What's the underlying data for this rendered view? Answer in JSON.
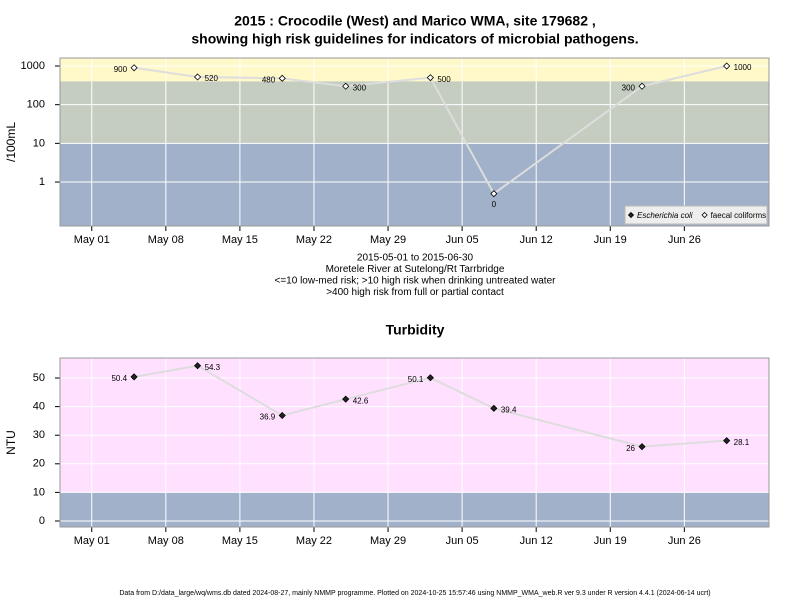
{
  "title": [
    "2015 : Crocodile (West) and Marico WMA, site 179682 ,",
    "showing high risk guidelines for indicators of microbial pathogens."
  ],
  "footer": "Data from D:/data_large/wq/wms.db dated 2024-08-27, mainly NMMP programme. Plotted on 2024-10-25 15:57:46 using NMMP_WMA_web.R ver 9.3 under R version 4.4.1 (2024-06-14 ucrt)",
  "chart_data": [
    {
      "type": "line",
      "ylabel": "/100mL",
      "log_scale": true,
      "grid": true,
      "legend": "bottom-right",
      "caption": [
        "2015-05-01 to 2015-06-30",
        "Moretele River at Sutelong/Rt Tarrbridge",
        "<=10 low-med risk; >10 high risk when drinking untreated water",
        ">400 high risk from full or partial contact"
      ],
      "x": [
        "2015-05-05",
        "2015-05-11",
        "2015-05-19",
        "2015-05-25",
        "2015-06-02",
        "2015-06-08",
        "2015-06-22",
        "2015-06-30"
      ],
      "xlim": [
        "2015-04-28",
        "2015-07-04"
      ],
      "xticks": [
        {
          "value": "2015-05-01",
          "label": "May 01"
        },
        {
          "value": "2015-05-08",
          "label": "May 08"
        },
        {
          "value": "2015-05-15",
          "label": "May 15"
        },
        {
          "value": "2015-05-22",
          "label": "May 22"
        },
        {
          "value": "2015-05-29",
          "label": "May 29"
        },
        {
          "value": "2015-06-05",
          "label": "Jun 05"
        },
        {
          "value": "2015-06-12",
          "label": "Jun 12"
        },
        {
          "value": "2015-06-19",
          "label": "Jun 19"
        },
        {
          "value": "2015-06-26",
          "label": "Jun 26"
        }
      ],
      "ylim": [
        0.073,
        1610
      ],
      "yticks": [
        1,
        10,
        100,
        1000
      ],
      "bands": [
        {
          "from": 400,
          "color": "#fff8c8"
        },
        {
          "from": 10,
          "color": "#c4cdc0"
        },
        {
          "color": "#a0b1c9"
        }
      ],
      "series": [
        {
          "name": "Escherichia coli",
          "color": "#000000",
          "marker": "filled",
          "values": [
            null,
            null,
            null,
            null,
            null,
            null,
            null,
            null
          ]
        },
        {
          "name": "faecal coliforms",
          "color": "#dddddd",
          "marker": "open",
          "values": [
            900,
            520,
            480,
            300,
            500,
            0.5,
            300,
            1000
          ],
          "value_labels": [
            "900",
            "520",
            "480",
            "300",
            "500",
            "0",
            "300",
            "1000"
          ]
        }
      ]
    },
    {
      "type": "line",
      "title": "Turbidity",
      "ylabel": "NTU",
      "grid": true,
      "x": [
        "2015-05-05",
        "2015-05-11",
        "2015-05-19",
        "2015-05-25",
        "2015-06-02",
        "2015-06-08",
        "2015-06-22",
        "2015-06-30"
      ],
      "xlim": [
        "2015-04-28",
        "2015-07-04"
      ],
      "xticks": [
        {
          "value": "2015-05-01",
          "label": "May 01"
        },
        {
          "value": "2015-05-08",
          "label": "May 08"
        },
        {
          "value": "2015-05-15",
          "label": "May 15"
        },
        {
          "value": "2015-05-22",
          "label": "May 22"
        },
        {
          "value": "2015-05-29",
          "label": "May 29"
        },
        {
          "value": "2015-06-05",
          "label": "Jun 05"
        },
        {
          "value": "2015-06-12",
          "label": "Jun 12"
        },
        {
          "value": "2015-06-19",
          "label": "Jun 19"
        },
        {
          "value": "2015-06-26",
          "label": "Jun 26"
        }
      ],
      "ylim": [
        -2.1,
        57
      ],
      "yticks": [
        0,
        10,
        20,
        30,
        40,
        50
      ],
      "bands": [
        {
          "from": 10,
          "color": "#ffe0ff"
        },
        {
          "color": "#a0b1c9"
        }
      ],
      "series": [
        {
          "name": "Turbidity",
          "color": "#dddddd",
          "marker": "filled",
          "values": [
            50.4,
            54.3,
            36.9,
            42.6,
            50.1,
            39.4,
            26,
            28.1
          ]
        }
      ]
    }
  ]
}
